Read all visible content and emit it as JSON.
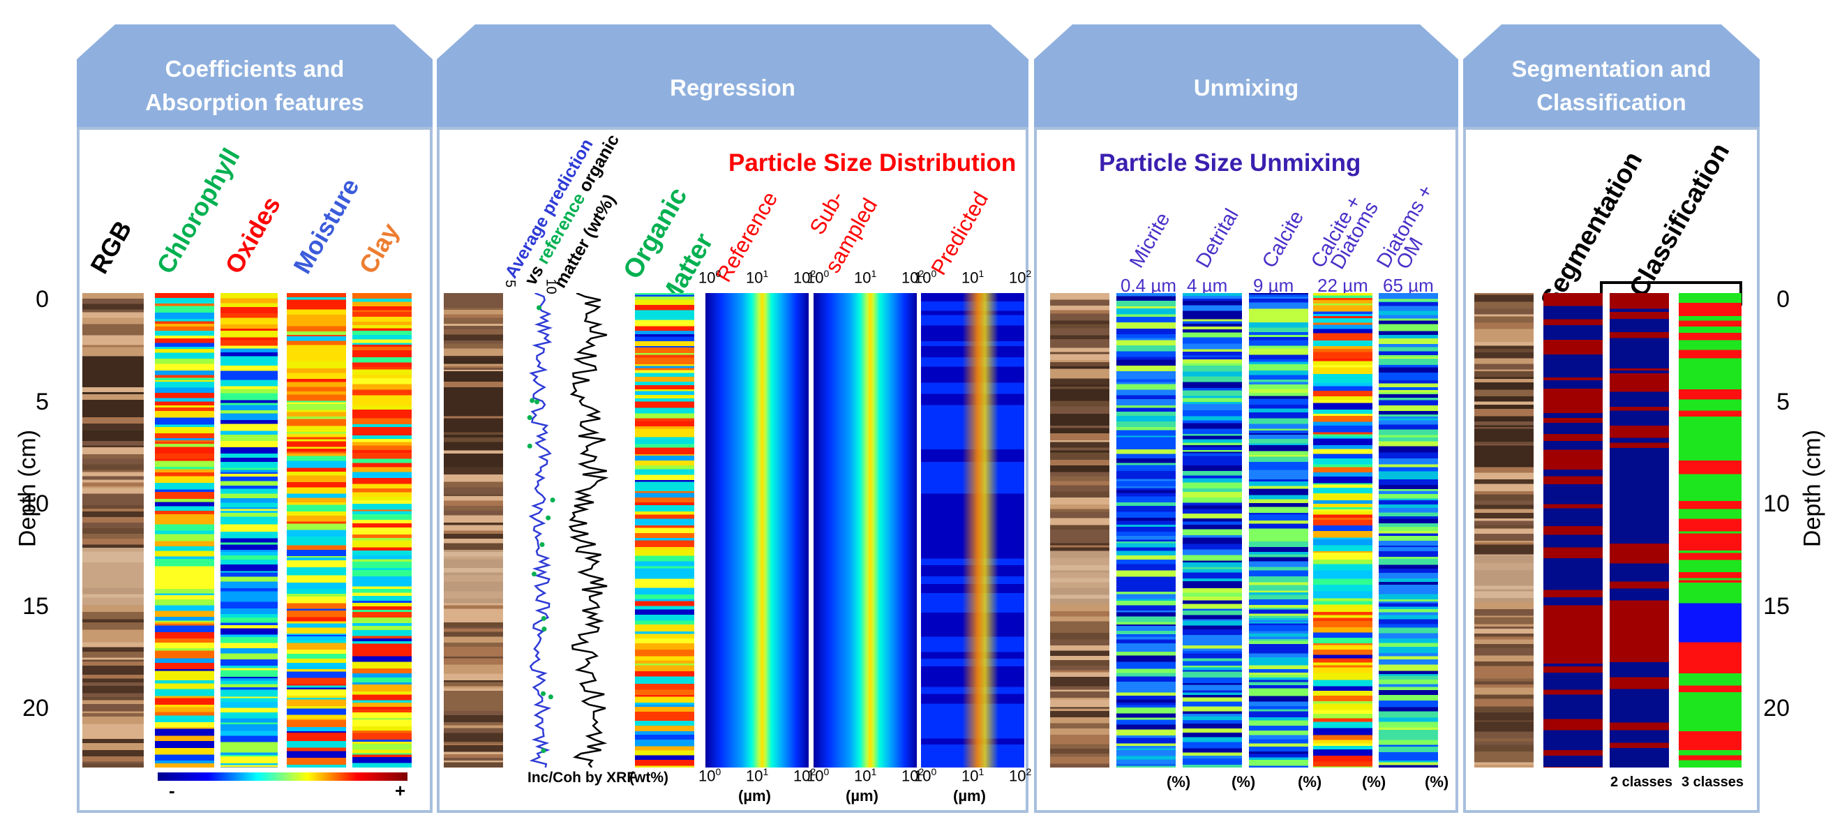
{
  "panels": {
    "coefficients": {
      "title_line1": "Coefficients and",
      "title_line2": "Absorption features"
    },
    "regression": {
      "title": "Regression"
    },
    "unmixing": {
      "title": "Unmixing"
    },
    "segmentation": {
      "title_line1": "Segmentation and",
      "title_line2": "Classification"
    }
  },
  "coeff_labels": {
    "rgb": "RGB",
    "chlorophyll": "Chlorophyll",
    "oxides": "Oxides",
    "moisture": "Moisture",
    "clay": "Clay",
    "colorbar_min": "-",
    "colorbar_max": "+"
  },
  "regression_labels": {
    "avg_prediction": "Average prediction",
    "vs": "vs",
    "reference": "reference",
    "organic": "organic",
    "matter_wt": "matter (wt%)",
    "organic_matter_1": "Organic",
    "organic_matter_2": "Matter",
    "psd_title": "Particle Size Distribution",
    "reference_col": "Reference",
    "subsampled_1": "Sub-",
    "subsampled_2": "sampled",
    "predicted": "Predicted",
    "xrf_axis_5": "5",
    "xrf_axis_10": "10",
    "inc_coh": "Inc/Coh by XRF",
    "wt_pct": "(wt%)",
    "um": "(µm)",
    "tick_base": "10",
    "tick_exps": [
      "0",
      "1",
      "2"
    ]
  },
  "unmixing_labels": {
    "title": "Particle Size Unmixing",
    "components": [
      {
        "name": "Micrite",
        "size": "0.4 µm"
      },
      {
        "name": "Detrital",
        "size": "4 µm"
      },
      {
        "name": "Calcite",
        "size": "9 µm"
      },
      {
        "name": "Calcite + Diatoms",
        "name1": "Calcite +",
        "name2": "Diatoms",
        "size": "22 µm"
      },
      {
        "name": "Diatoms + OM",
        "name1": "Diatoms +",
        "name2": "OM",
        "size": "65 µm"
      }
    ],
    "pct": "(%)"
  },
  "seg_labels": {
    "segmentation": "Segmentation",
    "classification": "Classification",
    "two_classes": "2 classes",
    "three_classes": "3 classes"
  },
  "depth_axis": {
    "label": "Depth (cm)",
    "ticks": [
      0,
      5,
      10,
      15,
      20
    ],
    "tick_labels": [
      "0",
      "5",
      "10",
      "15",
      "20"
    ],
    "max_depth": 22.5
  },
  "colors": {
    "header": "#8fb0de",
    "border": "#a8bfdd",
    "chlorophyll": "#00b050",
    "oxides": "#ff0000",
    "moisture": "#3b5bdb",
    "clay": "#ed7d31",
    "avg_prediction": "#2e3bd6",
    "reference": "#00b050",
    "psd_title": "#ff0000",
    "unmixing_title": "#3a1fb0",
    "unmixing_labels": "#4a2fc8",
    "class_blue": "#000c8c",
    "class_red": "#a00000",
    "class_green": "#1ee61e",
    "class_bright_blue": "#0a14ff"
  }
}
